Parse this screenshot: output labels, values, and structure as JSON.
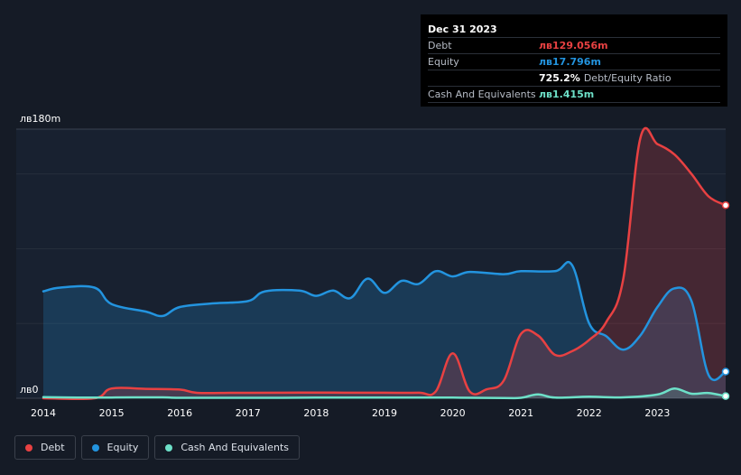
{
  "tooltip": {
    "date": "Dec 31 2023",
    "rows": [
      {
        "label": "Debt",
        "value": "лв129.056m",
        "color": "#e84142"
      },
      {
        "label": "Equity",
        "value": "лв17.796m",
        "color": "#2394df"
      },
      {
        "label": "",
        "value": "725.2%",
        "suffix": "Debt/Equity Ratio",
        "color": "#ffffff"
      },
      {
        "label": "Cash And Equivalents",
        "value": "лв1.415m",
        "color": "#6de0c8"
      }
    ]
  },
  "legend": [
    {
      "label": "Debt",
      "color": "#e84142"
    },
    {
      "label": "Equity",
      "color": "#2394df"
    },
    {
      "label": "Cash And Equivalents",
      "color": "#6de0c8"
    }
  ],
  "chart_data": {
    "type": "area",
    "title": "",
    "xlabel": "",
    "ylabel": "",
    "ylim": [
      0,
      180
    ],
    "x_range": [
      2014.0,
      2024.0
    ],
    "y_tick_labels": [
      "лв180m",
      "лв0"
    ],
    "x_ticks": [
      {
        "year": 2014,
        "label": "2014"
      },
      {
        "year": 2015,
        "label": "2015"
      },
      {
        "year": 2016,
        "label": "2016"
      },
      {
        "year": 2017,
        "label": "2017"
      },
      {
        "year": 2018,
        "label": "2018"
      },
      {
        "year": 2019,
        "label": "2019"
      },
      {
        "year": 2020,
        "label": "2020"
      },
      {
        "year": 2021,
        "label": "2021"
      },
      {
        "year": 2022,
        "label": "2022"
      },
      {
        "year": 2023,
        "label": "2023"
      }
    ],
    "series": [
      {
        "name": "Equity",
        "color": "#2394df",
        "fill": "rgba(35,148,223,0.22)",
        "points": [
          [
            2014.0,
            71.5
          ],
          [
            2014.25,
            74
          ],
          [
            2014.75,
            74
          ],
          [
            2015.0,
            63
          ],
          [
            2015.5,
            58
          ],
          [
            2015.75,
            55
          ],
          [
            2016.0,
            61
          ],
          [
            2016.5,
            63.5
          ],
          [
            2017.0,
            65
          ],
          [
            2017.25,
            71.5
          ],
          [
            2017.75,
            72
          ],
          [
            2018.0,
            68.5
          ],
          [
            2018.25,
            72
          ],
          [
            2018.5,
            67
          ],
          [
            2018.75,
            80
          ],
          [
            2019.0,
            70.5
          ],
          [
            2019.25,
            78.5
          ],
          [
            2019.5,
            76.5
          ],
          [
            2019.75,
            85
          ],
          [
            2020.0,
            81.5
          ],
          [
            2020.25,
            84.5
          ],
          [
            2020.75,
            83
          ],
          [
            2021.0,
            85
          ],
          [
            2021.5,
            85
          ],
          [
            2021.75,
            89
          ],
          [
            2022.0,
            50
          ],
          [
            2022.25,
            41.5
          ],
          [
            2022.5,
            32.5
          ],
          [
            2022.75,
            42
          ],
          [
            2023.0,
            61
          ],
          [
            2023.25,
            73.5
          ],
          [
            2023.5,
            65
          ],
          [
            2023.75,
            15.5
          ],
          [
            2024.0,
            17.8
          ]
        ]
      },
      {
        "name": "Debt",
        "color": "#e84142",
        "fill": "rgba(232,65,66,0.22)",
        "points": [
          [
            2014.0,
            0
          ],
          [
            2014.75,
            0
          ],
          [
            2015.0,
            6.5
          ],
          [
            2015.5,
            6.3
          ],
          [
            2016.0,
            5.8
          ],
          [
            2016.25,
            3.6
          ],
          [
            2016.75,
            3.6
          ],
          [
            2017.0,
            3.6
          ],
          [
            2017.5,
            3.7
          ],
          [
            2018.0,
            3.8
          ],
          [
            2018.5,
            3.7
          ],
          [
            2019.0,
            3.7
          ],
          [
            2019.5,
            3.7
          ],
          [
            2019.75,
            4.5
          ],
          [
            2020.0,
            30
          ],
          [
            2020.25,
            4.5
          ],
          [
            2020.5,
            6
          ],
          [
            2020.75,
            12
          ],
          [
            2021.0,
            43
          ],
          [
            2021.25,
            42
          ],
          [
            2021.5,
            29
          ],
          [
            2021.75,
            31.5
          ],
          [
            2022.0,
            39
          ],
          [
            2022.25,
            51
          ],
          [
            2022.5,
            80
          ],
          [
            2022.75,
            174
          ],
          [
            2023.0,
            170
          ],
          [
            2023.25,
            163
          ],
          [
            2023.5,
            150
          ],
          [
            2023.75,
            135
          ],
          [
            2024.0,
            129.1
          ]
        ]
      },
      {
        "name": "Cash And Equivalents",
        "color": "#6de0c8",
        "fill": "rgba(109,224,200,0.18)",
        "points": [
          [
            2014.0,
            0.8
          ],
          [
            2014.5,
            0.5
          ],
          [
            2015.0,
            0.5
          ],
          [
            2015.75,
            0.6
          ],
          [
            2016.0,
            0.3
          ],
          [
            2017.0,
            0.3
          ],
          [
            2018.0,
            0.4
          ],
          [
            2019.0,
            0.4
          ],
          [
            2020.0,
            0.4
          ],
          [
            2020.75,
            0.2
          ],
          [
            2021.0,
            0.3
          ],
          [
            2021.25,
            2.6
          ],
          [
            2021.5,
            0.4
          ],
          [
            2022.0,
            1.0
          ],
          [
            2022.5,
            0.6
          ],
          [
            2023.0,
            2.5
          ],
          [
            2023.25,
            6.5
          ],
          [
            2023.5,
            3
          ],
          [
            2023.75,
            3.5
          ],
          [
            2024.0,
            1.4
          ]
        ]
      }
    ]
  }
}
